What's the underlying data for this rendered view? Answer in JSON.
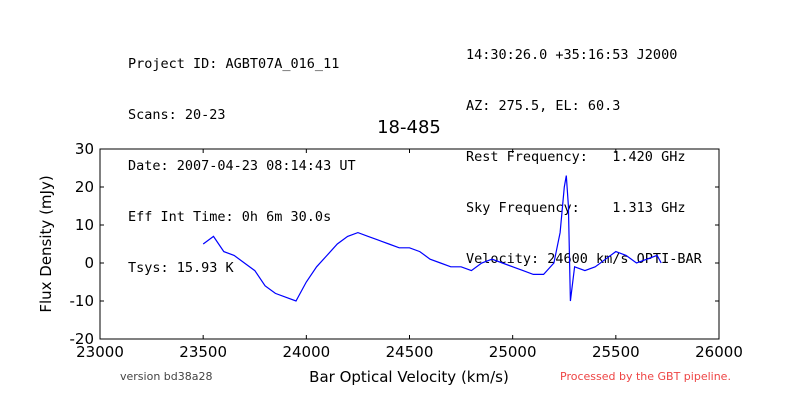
{
  "header_left": [
    "Project ID: AGBT07A_016_11",
    "Scans: 20-23",
    "Date: 2007-04-23 08:14:43 UT",
    "Eff Int Time: 0h 6m 30.0s",
    "Tsys: 15.93 K"
  ],
  "header_right": [
    "14:30:26.0 +35:16:53 J2000",
    "AZ: 275.5, EL: 60.3",
    "Rest Frequency:   1.420 GHz",
    "Sky Frequency:    1.313 GHz",
    "Velocity: 24600 km/s OPTI-BAR"
  ],
  "footer": {
    "version": "version bd38a28",
    "processed": "Processed by the GBT pipeline.",
    "processed_color": "#ee4444"
  },
  "chart_data": {
    "type": "line",
    "title": "18-485",
    "xlabel": "Bar Optical Velocity (km/s)",
    "ylabel": "Flux Density (mJy)",
    "xlim": [
      23000,
      26000
    ],
    "ylim": [
      -20,
      30
    ],
    "xticks": [
      23000,
      23500,
      24000,
      24500,
      25000,
      25500,
      26000
    ],
    "yticks": [
      -20,
      -10,
      0,
      10,
      20,
      30
    ],
    "grid": false,
    "line_color": "#0000ff",
    "x": [
      23500,
      23550,
      23600,
      23650,
      23700,
      23750,
      23800,
      23850,
      23900,
      23950,
      24000,
      24050,
      24100,
      24150,
      24200,
      24250,
      24300,
      24350,
      24400,
      24450,
      24500,
      24550,
      24600,
      24650,
      24700,
      24750,
      24800,
      24850,
      24900,
      24950,
      25000,
      25050,
      25100,
      25150,
      25200,
      25230,
      25250,
      25260,
      25270,
      25280,
      25300,
      25350,
      25400,
      25450,
      25500,
      25550,
      25600,
      25650,
      25700,
      25720
    ],
    "y": [
      5,
      7,
      3,
      2,
      0,
      -2,
      -6,
      -8,
      -9,
      -10,
      -5,
      -1,
      2,
      5,
      7,
      8,
      7,
      6,
      5,
      4,
      4,
      3,
      1,
      0,
      -1,
      -1,
      -2,
      0,
      1,
      0,
      -1,
      -2,
      -3,
      -3,
      0,
      8,
      20,
      23,
      15,
      -10,
      -1,
      -2,
      -1,
      1,
      3,
      2,
      0,
      1,
      2,
      0
    ]
  }
}
